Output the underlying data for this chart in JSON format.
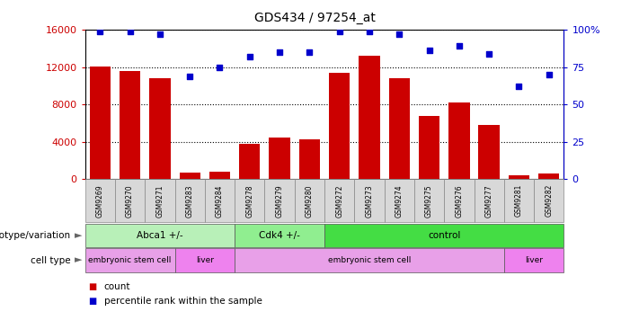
{
  "title": "GDS434 / 97254_at",
  "samples": [
    "GSM9269",
    "GSM9270",
    "GSM9271",
    "GSM9283",
    "GSM9284",
    "GSM9278",
    "GSM9279",
    "GSM9280",
    "GSM9272",
    "GSM9273",
    "GSM9274",
    "GSM9275",
    "GSM9276",
    "GSM9277",
    "GSM9281",
    "GSM9282"
  ],
  "counts": [
    12100,
    11600,
    10800,
    700,
    800,
    3800,
    4500,
    4300,
    11400,
    13200,
    10800,
    6800,
    8200,
    5800,
    400,
    600
  ],
  "percentiles": [
    99,
    99,
    97,
    69,
    75,
    82,
    85,
    85,
    99,
    99,
    97,
    86,
    89,
    84,
    62,
    70
  ],
  "bar_color": "#cc0000",
  "dot_color": "#0000cc",
  "ylim_left": [
    0,
    16000
  ],
  "ylim_right": [
    0,
    100
  ],
  "yticks_left": [
    0,
    4000,
    8000,
    12000,
    16000
  ],
  "yticks_right": [
    0,
    25,
    50,
    75,
    100
  ],
  "yticklabels_right": [
    "0",
    "25",
    "50",
    "75",
    "100%"
  ],
  "genotype_groups": [
    {
      "label": "Abca1 +/-",
      "start": 0,
      "end": 5,
      "color": "#b8f0b8"
    },
    {
      "label": "Cdk4 +/-",
      "start": 5,
      "end": 8,
      "color": "#90ee90"
    },
    {
      "label": "control",
      "start": 8,
      "end": 16,
      "color": "#44dd44"
    }
  ],
  "celltype_groups": [
    {
      "label": "embryonic stem cell",
      "start": 0,
      "end": 3,
      "color": "#e8a0e8"
    },
    {
      "label": "liver",
      "start": 3,
      "end": 5,
      "color": "#ee82ee"
    },
    {
      "label": "embryonic stem cell",
      "start": 5,
      "end": 14,
      "color": "#e8a0e8"
    },
    {
      "label": "liver",
      "start": 14,
      "end": 16,
      "color": "#ee82ee"
    }
  ],
  "genotype_label": "genotype/variation",
  "celltype_label": "cell type",
  "legend_count": "count",
  "legend_percentile": "percentile rank within the sample",
  "background_color": "#ffffff",
  "plot_bg_color": "#ffffff",
  "xtick_bg_color": "#d8d8d8",
  "xtick_border_color": "#888888"
}
